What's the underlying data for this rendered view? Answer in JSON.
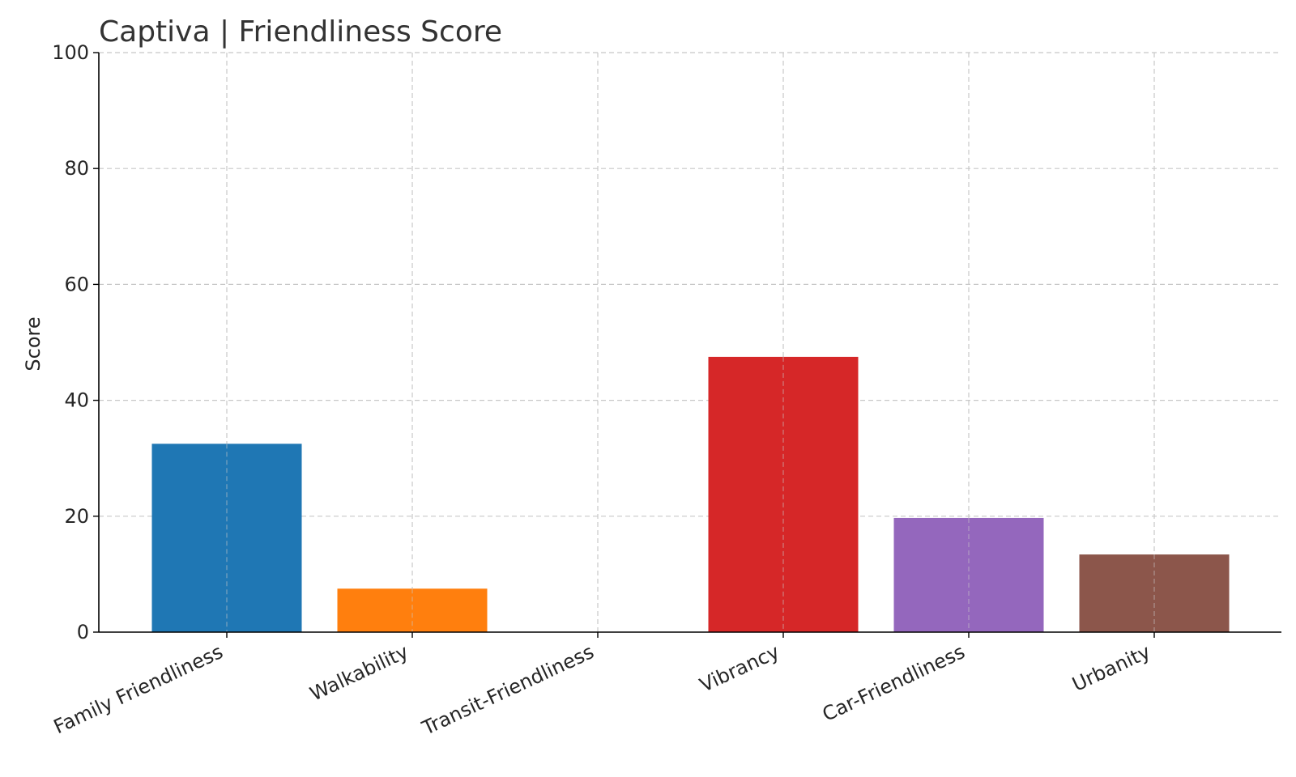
{
  "chart_data": {
    "type": "bar",
    "title": "Captiva |  Friendliness Score",
    "xlabel": "",
    "ylabel": "Score",
    "ylim": [
      0,
      100
    ],
    "yticks": [
      "0",
      "20",
      "40",
      "60",
      "80",
      "100"
    ],
    "grid": true,
    "categories": [
      "Family Friendliness",
      "Walkability",
      "Transit-Friendliness",
      "Vibrancy",
      "Car-Friendliness",
      "Urbanity"
    ],
    "values": [
      32.5,
      7.5,
      0,
      47.5,
      19.7,
      13.4
    ],
    "colors": [
      "#1f77b4",
      "#ff7f0e",
      "#2ca02c",
      "#d62728",
      "#9467bd",
      "#8c564b"
    ]
  }
}
